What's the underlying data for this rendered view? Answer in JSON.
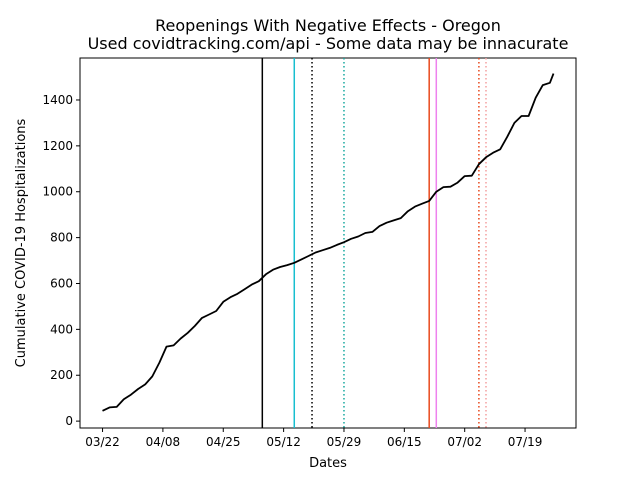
{
  "chart_data": {
    "type": "line",
    "title": "Reopenings With Negative Effects - Oregon",
    "subtitle": "Used covidtracking.com/api - Some data may be innacurate",
    "x_label": "Dates",
    "y_label": "Cumulative COVID-19 Hospitalizations",
    "x": [
      "03/22",
      "03/24",
      "03/26",
      "03/28",
      "03/30",
      "04/01",
      "04/03",
      "04/05",
      "04/07",
      "04/09",
      "04/11",
      "04/13",
      "04/15",
      "04/17",
      "04/19",
      "04/21",
      "04/23",
      "04/25",
      "04/27",
      "04/29",
      "05/01",
      "05/03",
      "05/05",
      "05/07",
      "05/09",
      "05/11",
      "05/13",
      "05/15",
      "05/17",
      "05/19",
      "05/21",
      "05/23",
      "05/25",
      "05/27",
      "05/29",
      "05/31",
      "06/02",
      "06/04",
      "06/06",
      "06/08",
      "06/10",
      "06/12",
      "06/14",
      "06/16",
      "06/18",
      "06/20",
      "06/22",
      "06/24",
      "06/26",
      "06/28",
      "06/30",
      "07/02",
      "07/04",
      "07/06",
      "07/08",
      "07/10",
      "07/12",
      "07/14",
      "07/16",
      "07/18",
      "07/20",
      "07/22",
      "07/24",
      "07/26",
      "07/27"
    ],
    "series": [
      {
        "color": "#000000",
        "values": [
          45,
          60,
          62,
          95,
          115,
          140,
          160,
          195,
          255,
          325,
          330,
          360,
          385,
          415,
          450,
          465,
          480,
          520,
          540,
          555,
          575,
          595,
          610,
          640,
          660,
          672,
          680,
          690,
          705,
          720,
          735,
          745,
          755,
          768,
          780,
          795,
          805,
          820,
          825,
          850,
          865,
          875,
          885,
          915,
          935,
          948,
          960,
          1000,
          1020,
          1022,
          1040,
          1068,
          1070,
          1120,
          1150,
          1170,
          1185,
          1240,
          1300,
          1330,
          1330,
          1410,
          1465,
          1475,
          1515
        ]
      }
    ],
    "vlines": [
      {
        "x": "05/06",
        "color": "#000000",
        "style": "solid"
      },
      {
        "x": "05/15",
        "color": "#17becf",
        "style": "solid"
      },
      {
        "x": "05/20",
        "color": "#000000",
        "style": "dotted"
      },
      {
        "x": "05/29",
        "color": "#17a89f",
        "style": "dotted"
      },
      {
        "x": "06/22",
        "color": "#e8481c",
        "style": "solid"
      },
      {
        "x": "06/24",
        "color": "#ee82ee",
        "style": "solid"
      },
      {
        "x": "07/06",
        "color": "#e8481c",
        "style": "dotted"
      },
      {
        "x": "07/08",
        "color": "#f4a0a0",
        "style": "dotted"
      }
    ],
    "xticks": [
      "03/22",
      "04/08",
      "04/25",
      "05/12",
      "05/29",
      "06/15",
      "07/02",
      "07/19"
    ],
    "ylim": [
      -30,
      1583
    ],
    "yticks": [
      0,
      200,
      400,
      600,
      800,
      1000,
      1200,
      1400
    ],
    "grid": false
  }
}
